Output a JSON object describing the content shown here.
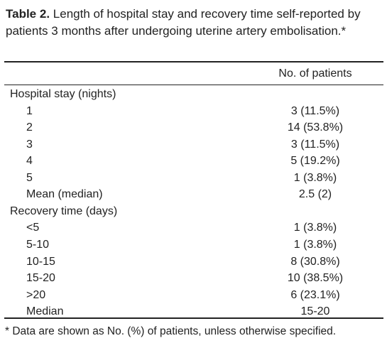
{
  "title": {
    "label": "Table 2.",
    "text": "Length of hospital stay and recovery time self-reported by patients 3 months after undergoing uterine artery embolisation.*"
  },
  "table": {
    "header": "No. of patients",
    "sections": [
      {
        "label": "Hospital stay (nights)",
        "rows": [
          [
            "1",
            "3 (11.5%)"
          ],
          [
            "2",
            "14 (53.8%)"
          ],
          [
            "3",
            "3 (11.5%)"
          ],
          [
            "4",
            "5 (19.2%)"
          ],
          [
            "5",
            "1 (3.8%)"
          ],
          [
            "Mean (median)",
            "2.5 (2)"
          ]
        ]
      },
      {
        "label": "Recovery time (days)",
        "rows": [
          [
            "<5",
            "1 (3.8%)"
          ],
          [
            "5-10",
            "1 (3.8%)"
          ],
          [
            "10-15",
            "8 (30.8%)"
          ],
          [
            "15-20",
            "10 (38.5%)"
          ],
          [
            ">20",
            "6 (23.1%)"
          ],
          [
            "Median",
            "15-20"
          ]
        ]
      }
    ]
  },
  "footnote": "* Data are shown as No. (%) of patients, unless otherwise specified."
}
